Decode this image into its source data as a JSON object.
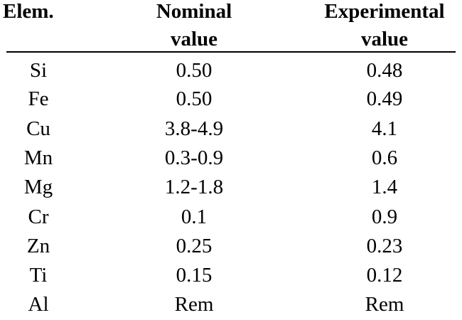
{
  "table": {
    "headers": {
      "element": "Elem.",
      "nominal_line1": "Nominal",
      "nominal_line2": "value",
      "experimental_line1": "Experimental",
      "experimental_line2": "value"
    },
    "rows": [
      {
        "element": "Si",
        "nominal": "0.50",
        "experimental": "0.48"
      },
      {
        "element": "Fe",
        "nominal": "0.50",
        "experimental": "0.49"
      },
      {
        "element": "Cu",
        "nominal": "3.8-4.9",
        "experimental": "4.1"
      },
      {
        "element": "Mn",
        "nominal": "0.3-0.9",
        "experimental": "0.6"
      },
      {
        "element": "Mg",
        "nominal": "1.2-1.8",
        "experimental": "1.4"
      },
      {
        "element": "Cr",
        "nominal": "0.1",
        "experimental": "0.9"
      },
      {
        "element": "Zn",
        "nominal": "0.25",
        "experimental": "0.23"
      },
      {
        "element": "Ti",
        "nominal": "0.15",
        "experimental": "0.12"
      },
      {
        "element": "Al",
        "nominal": "Rem",
        "experimental": "Rem"
      }
    ]
  }
}
